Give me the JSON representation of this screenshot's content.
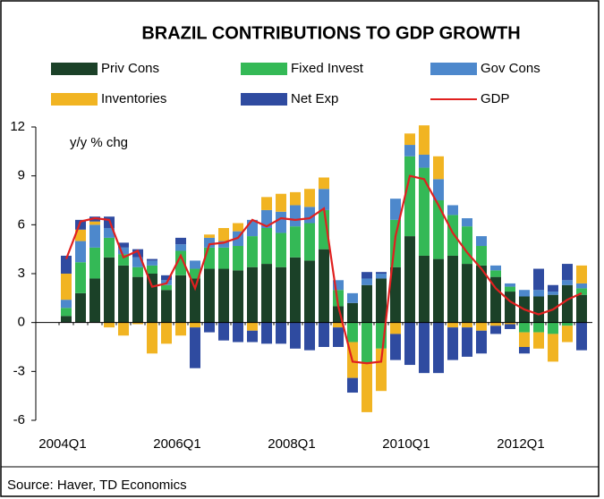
{
  "chart_data": {
    "type": "stacked_bar_line",
    "title": "BRAZIL CONTRIBUTIONS TO GDP GROWTH",
    "y_axis_label": "y/y % chg",
    "source": "Source: Haver, TD Economics",
    "categories": [
      "2004Q1",
      null,
      null,
      null,
      null,
      null,
      null,
      null,
      "2006Q1",
      null,
      null,
      null,
      null,
      null,
      null,
      null,
      "2008Q1",
      null,
      null,
      null,
      null,
      null,
      null,
      null,
      "2010Q1",
      null,
      null,
      null,
      null,
      null,
      null,
      null,
      "2012Q1",
      null,
      null,
      null,
      null
    ],
    "ylim": [
      -6,
      12
    ],
    "yticks": [
      -6,
      -3,
      0,
      3,
      6,
      9,
      12
    ],
    "series": [
      {
        "name": "Priv Cons",
        "kind": "bar",
        "color": "#1b4128",
        "values": [
          0.4,
          1.8,
          2.7,
          4.0,
          3.5,
          2.8,
          3.0,
          2.0,
          2.9,
          2.7,
          3.3,
          3.3,
          3.2,
          3.4,
          3.6,
          3.4,
          4.0,
          3.8,
          4.5,
          1.0,
          1.2,
          2.3,
          2.7,
          3.4,
          5.3,
          4.1,
          3.9,
          4.1,
          3.6,
          3.5,
          2.8,
          1.9,
          1.6,
          1.6,
          1.7,
          2.3,
          1.7
        ]
      },
      {
        "name": "Fixed Invest",
        "kind": "bar",
        "color": "#34b956",
        "values": [
          0.5,
          1.9,
          1.9,
          1.2,
          0.7,
          0.6,
          0.5,
          0.3,
          1.5,
          0.6,
          1.3,
          1.3,
          1.5,
          1.9,
          2.2,
          2.1,
          1.9,
          2.3,
          2.4,
          1.0,
          -1.2,
          -2.5,
          -1.6,
          2.9,
          4.9,
          5.4,
          3.6,
          2.5,
          2.3,
          1.2,
          0.4,
          0.3,
          -0.6,
          -0.6,
          -0.7,
          -0.2,
          0.4
        ]
      },
      {
        "name": "Gov Cons",
        "kind": "bar",
        "color": "#4d88cc",
        "values": [
          0.5,
          1.3,
          1.4,
          0.6,
          0.4,
          0.6,
          0.3,
          0.3,
          0.4,
          0.5,
          0.6,
          0.4,
          0.9,
          1.0,
          1.1,
          1.3,
          1.3,
          1.0,
          1.3,
          0.6,
          0.6,
          0.4,
          0.3,
          1.3,
          0.7,
          0.8,
          1.3,
          0.6,
          0.5,
          0.6,
          0.3,
          0.2,
          0.4,
          0.4,
          0.2,
          0.3,
          0.3
        ]
      },
      {
        "name": "Inventories",
        "kind": "bar",
        "color": "#f1b422",
        "values": [
          1.6,
          0.7,
          0.2,
          -0.3,
          -0.8,
          -0.1,
          -1.9,
          -1.3,
          -0.8,
          -0.3,
          0.2,
          0.8,
          0.5,
          -0.5,
          0.8,
          1.1,
          0.8,
          1.1,
          0.7,
          -0.3,
          -2.2,
          -3.0,
          -2.6,
          -0.7,
          0.7,
          1.8,
          1.4,
          -0.3,
          -0.3,
          -0.5,
          -0.2,
          -0.1,
          -0.9,
          -1.0,
          -1.7,
          -1.0,
          1.1
        ]
      },
      {
        "name": "Net Exp",
        "kind": "bar",
        "color": "#2f4ba0",
        "values": [
          1.1,
          0.6,
          0.3,
          0.7,
          0.3,
          0.5,
          0.1,
          0.3,
          0.4,
          -2.5,
          -0.6,
          -1.1,
          -1.2,
          -0.7,
          -1.3,
          -1.3,
          -1.6,
          -1.7,
          -1.5,
          -1.2,
          -0.9,
          0.4,
          0.1,
          -1.6,
          -2.6,
          -3.1,
          -3.1,
          -2.0,
          -1.8,
          -1.4,
          -0.5,
          -0.3,
          -0.4,
          1.3,
          0.4,
          1.0,
          -1.7
        ]
      },
      {
        "name": "GDP",
        "kind": "line",
        "color": "#e0201f",
        "values": [
          3.9,
          6.2,
          6.4,
          6.3,
          4.0,
          4.4,
          2.2,
          2.4,
          4.1,
          2.1,
          4.8,
          4.9,
          5.2,
          6.3,
          5.9,
          6.4,
          6.3,
          6.4,
          7.0,
          1.0,
          -2.4,
          -2.5,
          -2.4,
          5.3,
          9.0,
          8.8,
          7.2,
          5.5,
          4.3,
          3.3,
          2.1,
          1.3,
          0.8,
          0.5,
          0.8,
          1.4,
          1.8
        ]
      }
    ]
  }
}
